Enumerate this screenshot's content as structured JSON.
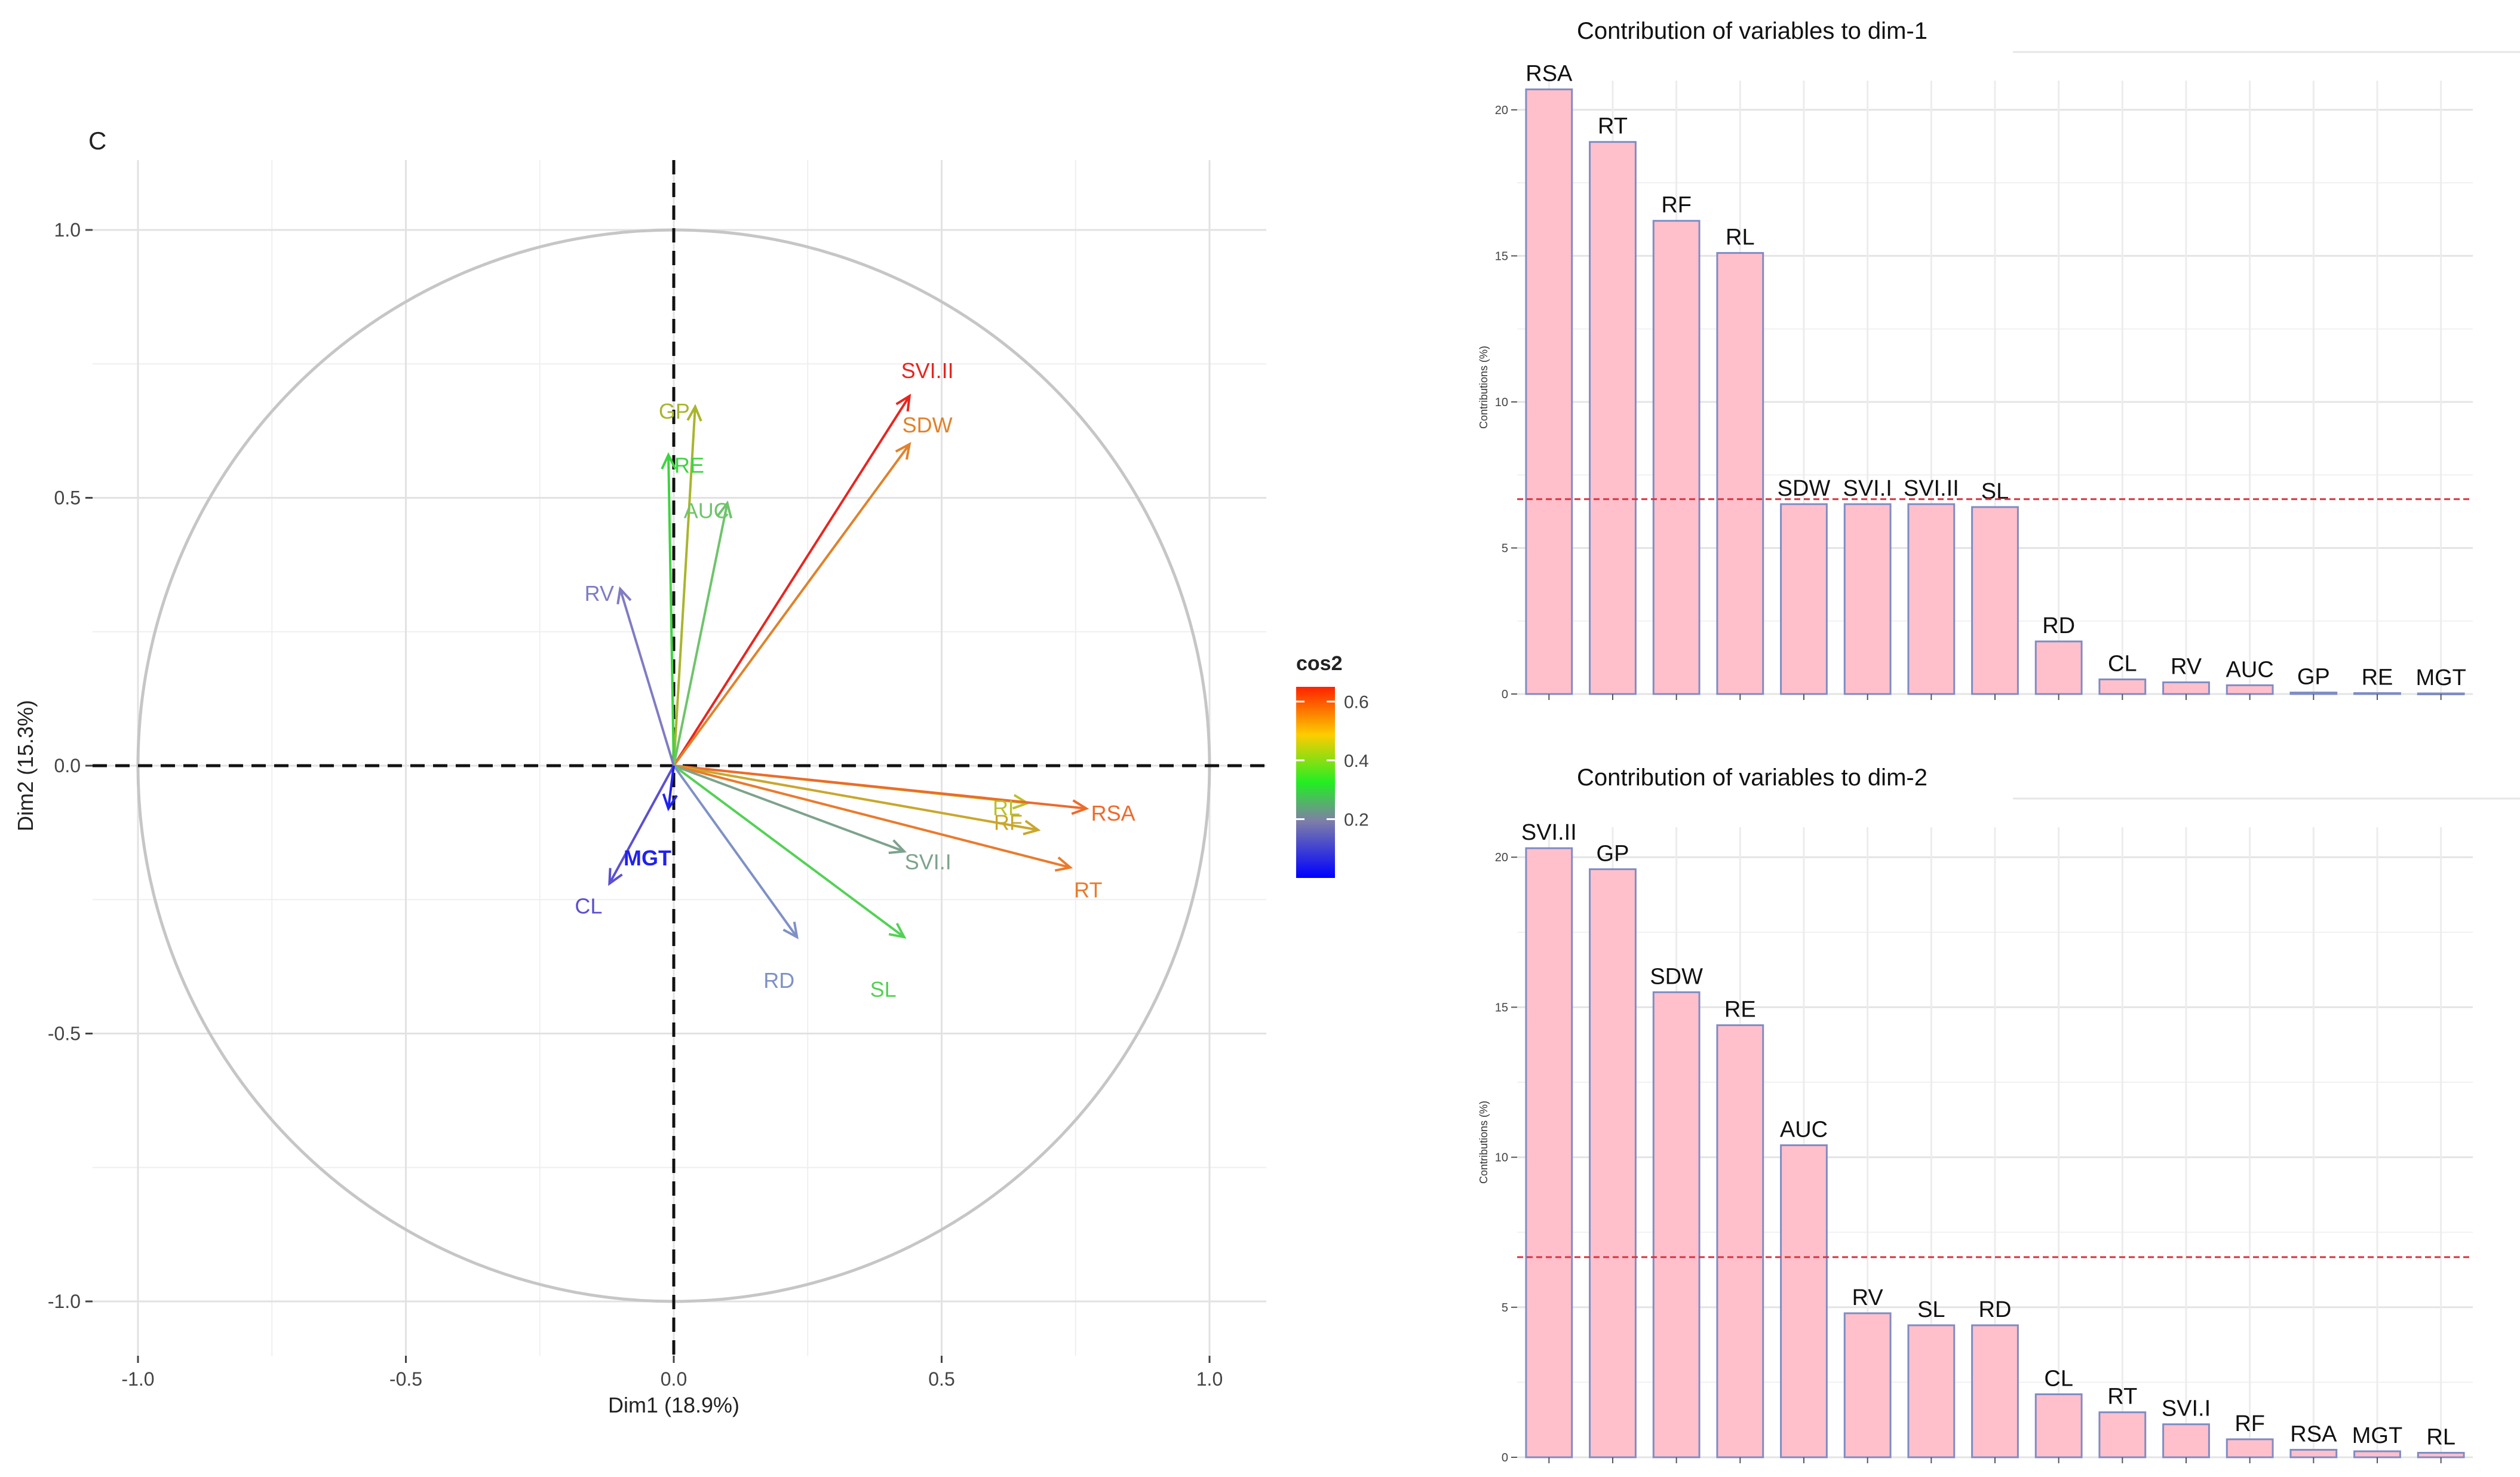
{
  "panel_label": "C",
  "chart_data": [
    {
      "type": "pca-variable-correlation-circle",
      "xlabel": "Dim1 (18.9%)",
      "ylabel": "Dim2 (15.3%)",
      "xlim": [
        -1.0,
        1.0
      ],
      "ylim": [
        -1.0,
        1.0
      ],
      "xticks": [
        "-1.0",
        "-0.5",
        "0.0",
        "0.5",
        "1.0"
      ],
      "yticks": [
        "-1.0",
        "-0.5",
        "0.0",
        "0.5",
        "1.0"
      ],
      "grid": true,
      "legend": {
        "title": "cos2",
        "labels": [
          "0.2",
          "0.4",
          "0.6"
        ],
        "range": [
          0.0,
          0.65
        ],
        "placement": "right"
      },
      "variables": [
        {
          "name": "SVI.II",
          "x": 0.44,
          "y": 0.69,
          "cos2": 0.67,
          "color": "#e8251f"
        },
        {
          "name": "SDW",
          "x": 0.44,
          "y": 0.6,
          "cos2": 0.55,
          "color": "#e0822a"
        },
        {
          "name": "GP",
          "x": 0.04,
          "y": 0.67,
          "cos2": 0.45,
          "color": "#a9b52c"
        },
        {
          "name": "RE",
          "x": -0.01,
          "y": 0.58,
          "cos2": 0.34,
          "color": "#3dd43f"
        },
        {
          "name": "AUC",
          "x": 0.1,
          "y": 0.49,
          "cos2": 0.25,
          "color": "#6ec46b"
        },
        {
          "name": "RV",
          "x": -0.1,
          "y": 0.33,
          "cos2": 0.12,
          "color": "#7f7cc4"
        },
        {
          "name": "RL",
          "x": 0.66,
          "y": -0.07,
          "cos2": 0.44,
          "color": "#b9c22a"
        },
        {
          "name": "RSA",
          "x": 0.77,
          "y": -0.08,
          "cos2": 0.6,
          "color": "#ee6a2b"
        },
        {
          "name": "RF",
          "x": 0.68,
          "y": -0.12,
          "cos2": 0.48,
          "color": "#c9a72c"
        },
        {
          "name": "RT",
          "x": 0.74,
          "y": -0.19,
          "cos2": 0.58,
          "color": "#ea7a2c"
        },
        {
          "name": "SVI.I",
          "x": 0.43,
          "y": -0.16,
          "cos2": 0.21,
          "color": "#7da38d"
        },
        {
          "name": "SL",
          "x": 0.43,
          "y": -0.32,
          "cos2": 0.29,
          "color": "#54d155"
        },
        {
          "name": "RD",
          "x": 0.23,
          "y": -0.32,
          "cos2": 0.16,
          "color": "#7e91c6"
        },
        {
          "name": "CL",
          "x": -0.12,
          "y": -0.22,
          "cos2": 0.06,
          "color": "#5c4fd2"
        },
        {
          "name": "MGT",
          "x": -0.01,
          "y": -0.08,
          "cos2": 0.01,
          "color": "#2121ee"
        }
      ]
    },
    {
      "type": "bar",
      "title": "Contribution of variables to dim-1",
      "ylabel": "Contributions (%)",
      "ylim": [
        0,
        21
      ],
      "yticks": [
        "0",
        "5",
        "10",
        "15",
        "20"
      ],
      "reference_line": 6.67,
      "categories": [
        "RSA",
        "RT",
        "RF",
        "RL",
        "SDW",
        "SVI.I",
        "SVI.II",
        "SL",
        "RD",
        "CL",
        "RV",
        "AUC",
        "GP",
        "RE",
        "MGT"
      ],
      "values": [
        20.7,
        18.9,
        16.2,
        15.1,
        6.5,
        6.5,
        6.5,
        6.4,
        1.8,
        0.5,
        0.4,
        0.3,
        0.05,
        0.03,
        0.02
      ]
    },
    {
      "type": "bar",
      "title": "Contribution of variables to dim-2",
      "ylabel": "Contributions (%)",
      "ylim": [
        0,
        21
      ],
      "yticks": [
        "0",
        "5",
        "10",
        "15",
        "20"
      ],
      "reference_line": 6.67,
      "categories": [
        "SVI.II",
        "GP",
        "SDW",
        "RE",
        "AUC",
        "RV",
        "SL",
        "RD",
        "CL",
        "RT",
        "SVI.I",
        "RF",
        "RSA",
        "MGT",
        "RL"
      ],
      "values": [
        20.3,
        19.6,
        15.5,
        14.4,
        10.4,
        4.8,
        4.4,
        4.4,
        2.1,
        1.5,
        1.1,
        0.6,
        0.25,
        0.2,
        0.15
      ]
    }
  ]
}
